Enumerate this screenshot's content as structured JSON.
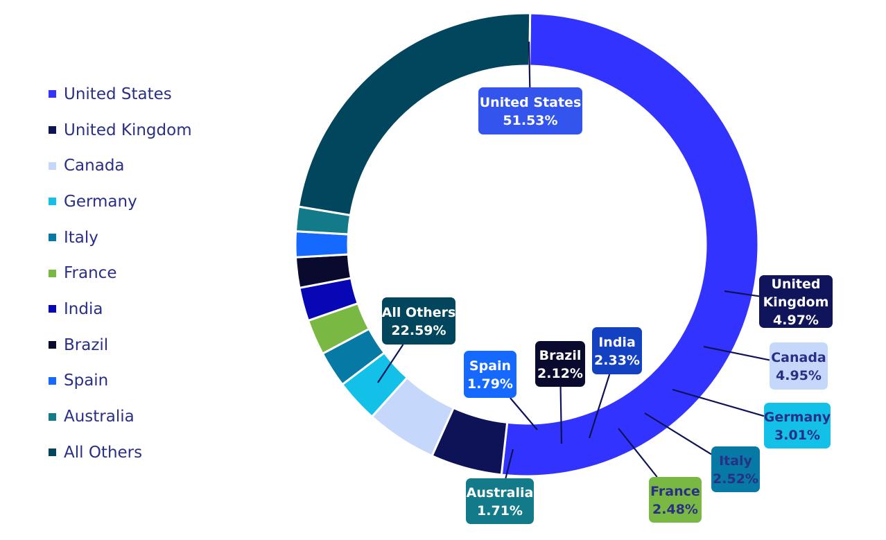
{
  "chart_data": {
    "type": "pie",
    "title": "",
    "legend_position": "left",
    "slices": [
      {
        "name": "United States",
        "value": 51.53,
        "label": "United States|51.53%",
        "color": "#3333ff",
        "text_color": "#ffffff",
        "box_color": "#3355ee"
      },
      {
        "name": "United Kingdom",
        "value": 4.97,
        "label": "United|Kingdom|4.97%",
        "color": "#0e1257",
        "text_color": "#ffffff",
        "box_color": "#10145a"
      },
      {
        "name": "Canada",
        "value": 4.95,
        "label": "Canada|4.95%",
        "color": "#c5d8fc",
        "text_color": "#2a2f86",
        "box_color": "#c5d8fc"
      },
      {
        "name": "Germany",
        "value": 3.01,
        "label": "Germany|3.01%",
        "color": "#13c0e8",
        "text_color": "#2a2f86",
        "box_color": "#13c0e8"
      },
      {
        "name": "Italy",
        "value": 2.52,
        "label": "Italy|2.52%",
        "color": "#0779a5",
        "text_color": "#2a2f86",
        "box_color": "#0779a5"
      },
      {
        "name": "France",
        "value": 2.48,
        "label": "France|2.48%",
        "color": "#7ab844",
        "text_color": "#2a2f86",
        "box_color": "#7ab844"
      },
      {
        "name": "India",
        "value": 2.33,
        "label": "India|2.33%",
        "color": "#0707b5",
        "text_color": "#ffffff",
        "box_color": "#1341c2"
      },
      {
        "name": "Brazil",
        "value": 2.12,
        "label": "Brazil|2.12%",
        "color": "#0a0a2e",
        "text_color": "#ffffff",
        "box_color": "#0a0a2e"
      },
      {
        "name": "Spain",
        "value": 1.79,
        "label": "Spain|1.79%",
        "color": "#1669ff",
        "text_color": "#ffffff",
        "box_color": "#1669ff"
      },
      {
        "name": "Australia",
        "value": 1.71,
        "label": "Australia|1.71%",
        "color": "#137a8a",
        "text_color": "#ffffff",
        "box_color": "#137a8a"
      },
      {
        "name": "All Others",
        "value": 22.59,
        "label": "All Others|22.59%",
        "color": "#02465e",
        "text_color": "#ffffff",
        "box_color": "#02465e"
      }
    ]
  }
}
